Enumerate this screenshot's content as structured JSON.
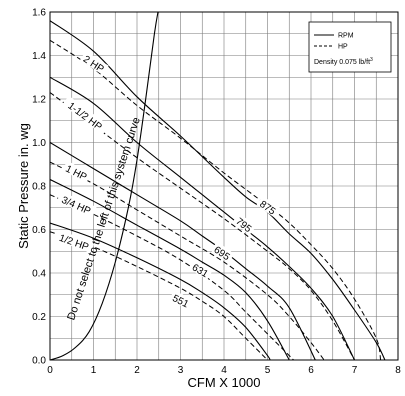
{
  "chart_data": {
    "type": "line",
    "xlabel": "CFM X 1000",
    "ylabel": "Static Pressure in. wg",
    "xlim": [
      0,
      8
    ],
    "ylim": [
      0,
      1.6
    ],
    "x_ticks": [
      "0",
      "1",
      "2",
      "3",
      "4",
      "5",
      "6",
      "7",
      "8"
    ],
    "y_ticks": [
      "0.0",
      "0.2",
      "0.4",
      "0.6",
      "0.8",
      "1.0",
      "1.2",
      "1.4",
      "1.6"
    ],
    "grid": true,
    "legend": {
      "placement": "top-right",
      "entries": [
        {
          "label": "RPM",
          "style": "solid"
        },
        {
          "label": "HP",
          "style": "dashed"
        }
      ],
      "note": "Density 0.075 lb/ft",
      "note_sup": "3"
    },
    "rpm_curves": [
      {
        "label": "875",
        "points": [
          [
            0,
            1.56
          ],
          [
            1,
            1.42
          ],
          [
            2,
            1.21
          ],
          [
            3,
            1.03
          ],
          [
            4,
            0.84
          ],
          [
            4.5,
            0.75
          ],
          [
            5,
            0.68
          ],
          [
            5.5,
            0.58
          ],
          [
            6,
            0.49
          ],
          [
            6.5,
            0.37
          ],
          [
            7,
            0.23
          ],
          [
            7.5,
            0.08
          ],
          [
            7.7,
            0
          ]
        ],
        "label_at": [
          5.0,
          0.7
        ]
      },
      {
        "label": "795",
        "points": [
          [
            0,
            1.3
          ],
          [
            1,
            1.18
          ],
          [
            2,
            1.0
          ],
          [
            3,
            0.84
          ],
          [
            3.5,
            0.76
          ],
          [
            4,
            0.68
          ],
          [
            4.5,
            0.6
          ],
          [
            5,
            0.52
          ],
          [
            5.5,
            0.43
          ],
          [
            6,
            0.33
          ],
          [
            6.5,
            0.2
          ],
          [
            7.0,
            0
          ]
        ],
        "label_at": [
          4.45,
          0.62
        ]
      },
      {
        "label": "695",
        "points": [
          [
            0,
            1.0
          ],
          [
            1,
            0.88
          ],
          [
            2,
            0.76
          ],
          [
            3,
            0.64
          ],
          [
            3.5,
            0.57
          ],
          [
            4,
            0.5
          ],
          [
            4.5,
            0.42
          ],
          [
            5,
            0.34
          ],
          [
            5.5,
            0.24
          ],
          [
            6.1,
            0
          ]
        ],
        "label_at": [
          3.95,
          0.49
        ]
      },
      {
        "label": "631",
        "points": [
          [
            0,
            0.83
          ],
          [
            1,
            0.73
          ],
          [
            2,
            0.62
          ],
          [
            3,
            0.51
          ],
          [
            3.5,
            0.45
          ],
          [
            4,
            0.39
          ],
          [
            4.5,
            0.31
          ],
          [
            5,
            0.18
          ],
          [
            5.5,
            0
          ]
        ],
        "label_at": [
          3.45,
          0.41
        ]
      },
      {
        "label": "551",
        "points": [
          [
            0,
            0.63
          ],
          [
            1,
            0.56
          ],
          [
            2,
            0.47
          ],
          [
            3,
            0.37
          ],
          [
            3.5,
            0.31
          ],
          [
            4,
            0.24
          ],
          [
            4.5,
            0.15
          ],
          [
            5,
            0.02
          ],
          [
            5.05,
            0
          ]
        ],
        "label_at": [
          3.0,
          0.27
        ]
      }
    ],
    "hp_curves": [
      {
        "label": "2 HP",
        "points": [
          [
            0,
            1.47
          ],
          [
            1,
            1.34
          ],
          [
            2,
            1.17
          ],
          [
            3,
            1.02
          ],
          [
            4,
            0.86
          ],
          [
            5,
            0.71
          ],
          [
            5.5,
            0.63
          ],
          [
            6,
            0.53
          ],
          [
            6.5,
            0.42
          ],
          [
            7,
            0.28
          ],
          [
            7.5,
            0.1
          ],
          [
            7.6,
            0
          ]
        ],
        "label_at": [
          1.0,
          1.36
        ]
      },
      {
        "label": "1-1/2 HP",
        "points": [
          [
            0,
            1.23
          ],
          [
            1,
            1.08
          ],
          [
            2,
            0.93
          ],
          [
            3,
            0.79
          ],
          [
            4,
            0.65
          ],
          [
            5,
            0.5
          ],
          [
            5.5,
            0.42
          ],
          [
            6,
            0.32
          ],
          [
            6.5,
            0.18
          ],
          [
            7,
            0
          ]
        ],
        "label_at": [
          0.8,
          1.12
        ]
      },
      {
        "label": "1 HP",
        "points": [
          [
            0,
            0.91
          ],
          [
            1,
            0.81
          ],
          [
            2,
            0.69
          ],
          [
            3,
            0.57
          ],
          [
            4,
            0.45
          ],
          [
            5,
            0.3
          ],
          [
            5.5,
            0.2
          ],
          [
            6,
            0.08
          ],
          [
            6.3,
            0
          ]
        ],
        "label_at": [
          0.6,
          0.86
        ]
      },
      {
        "label": "3/4 HP",
        "points": [
          [
            0,
            0.76
          ],
          [
            1,
            0.67
          ],
          [
            2,
            0.57
          ],
          [
            3,
            0.46
          ],
          [
            4,
            0.32
          ],
          [
            4.5,
            0.22
          ],
          [
            5,
            0.12
          ],
          [
            5.5,
            0.02
          ],
          [
            5.6,
            0
          ]
        ],
        "label_at": [
          0.6,
          0.71
        ]
      },
      {
        "label": "1/2 HP",
        "points": [
          [
            0,
            0.59
          ],
          [
            1,
            0.52
          ],
          [
            2,
            0.43
          ],
          [
            3,
            0.33
          ],
          [
            3.5,
            0.27
          ],
          [
            4,
            0.2
          ],
          [
            4.5,
            0.1
          ],
          [
            5,
            0
          ]
        ],
        "label_at": [
          0.55,
          0.54
        ]
      }
    ],
    "system_curve": {
      "points": [
        [
          0,
          0
        ],
        [
          0.3,
          0.02
        ],
        [
          0.6,
          0.06
        ],
        [
          0.9,
          0.13
        ],
        [
          1.2,
          0.26
        ],
        [
          1.5,
          0.45
        ],
        [
          1.8,
          0.7
        ],
        [
          2.0,
          0.92
        ],
        [
          2.2,
          1.2
        ],
        [
          2.4,
          1.5
        ],
        [
          2.5,
          1.62
        ]
      ],
      "annotation": "Do not select to the left of this system curve",
      "annotation_from": [
        0.55,
        0.18
      ],
      "annotation_to": [
        2.3,
        1.25
      ]
    }
  }
}
